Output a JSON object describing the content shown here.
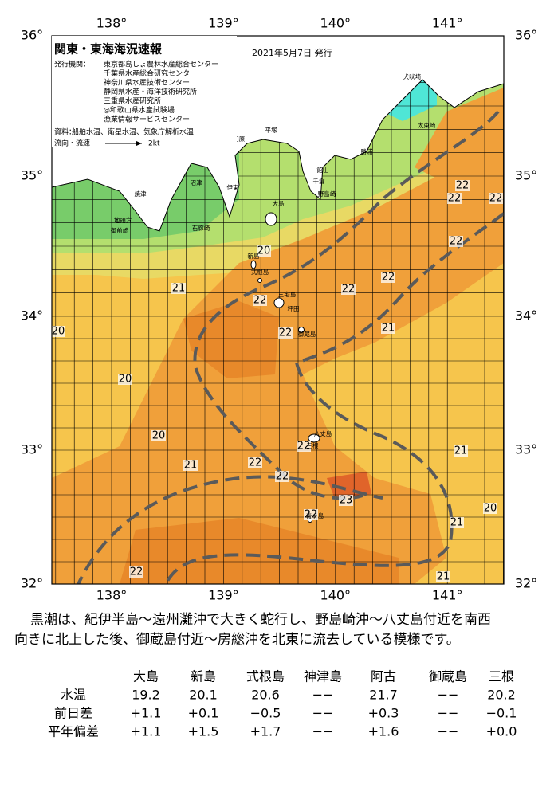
{
  "header": {
    "title": "関東・東海海況速報",
    "date": "2021年5月7日 発行",
    "issuer_label": "発行機関：",
    "issuers": [
      "東京都島しょ農林水産総合センター",
      "千葉県水産総合研究センター",
      "神奈川県水産技術センター",
      "静岡県水産・海洋技術研究所",
      "三重県水産研究所",
      "◎和歌山県水産試験場",
      "漁業情報サービスセンター"
    ],
    "source_label": "資料：",
    "source": "船舶水温、衛星水温、気象庁解析水温",
    "current_label": "流向・流速",
    "current_scale": "2kt"
  },
  "map": {
    "lon_labels": [
      "138°",
      "139°",
      "140°",
      "141°"
    ],
    "lat_labels": [
      "36°",
      "35°",
      "34°",
      "33°",
      "32°"
    ],
    "isotherm_labels": [
      "22",
      "22",
      "22",
      "22",
      "22",
      "22",
      "21",
      "21",
      "21",
      "21",
      "20",
      "22",
      "22",
      "20",
      "21",
      "20",
      "20",
      "20",
      "21",
      "22",
      "22",
      "22",
      "23",
      "22",
      "22"
    ],
    "places": [
      "犬吠埼",
      "太東崎",
      "勝浦",
      "小田原",
      "平塚",
      "館山",
      "千倉",
      "野島崎",
      "大島",
      "焼津",
      "地頭方",
      "御前崎",
      "沼津",
      "伊東",
      "石廊崎",
      "新島",
      "式根島",
      "三宅島",
      "坪田",
      "御蔵島",
      "八丈島",
      "三根",
      "青ヶ島"
    ]
  },
  "description": [
    "黒潮は、紀伊半島～遠州灘沖で大きく蛇行し、野島崎沖～八丈島付近を南西",
    "向きに北上した後、御蔵島付近～房総沖を北東に流去している模様です。"
  ],
  "table": {
    "columns": [
      "大島",
      "新島",
      "式根島",
      "神津島",
      "阿古",
      "御蔵島",
      "三根"
    ],
    "rows": [
      {
        "label": "水温",
        "cells": [
          "19.2",
          "20.1",
          "20.6",
          "−−",
          "21.7",
          "−−",
          "20.2"
        ]
      },
      {
        "label": "前日差",
        "cells": [
          "+1.1",
          "+0.1",
          "−0.5",
          "−−",
          "+0.3",
          "−−",
          "−0.1"
        ]
      },
      {
        "label": "平年偏差",
        "cells": [
          "+1.1",
          "+1.5",
          "+1.7",
          "−−",
          "+1.6",
          "−−",
          "+0.0"
        ]
      }
    ]
  }
}
